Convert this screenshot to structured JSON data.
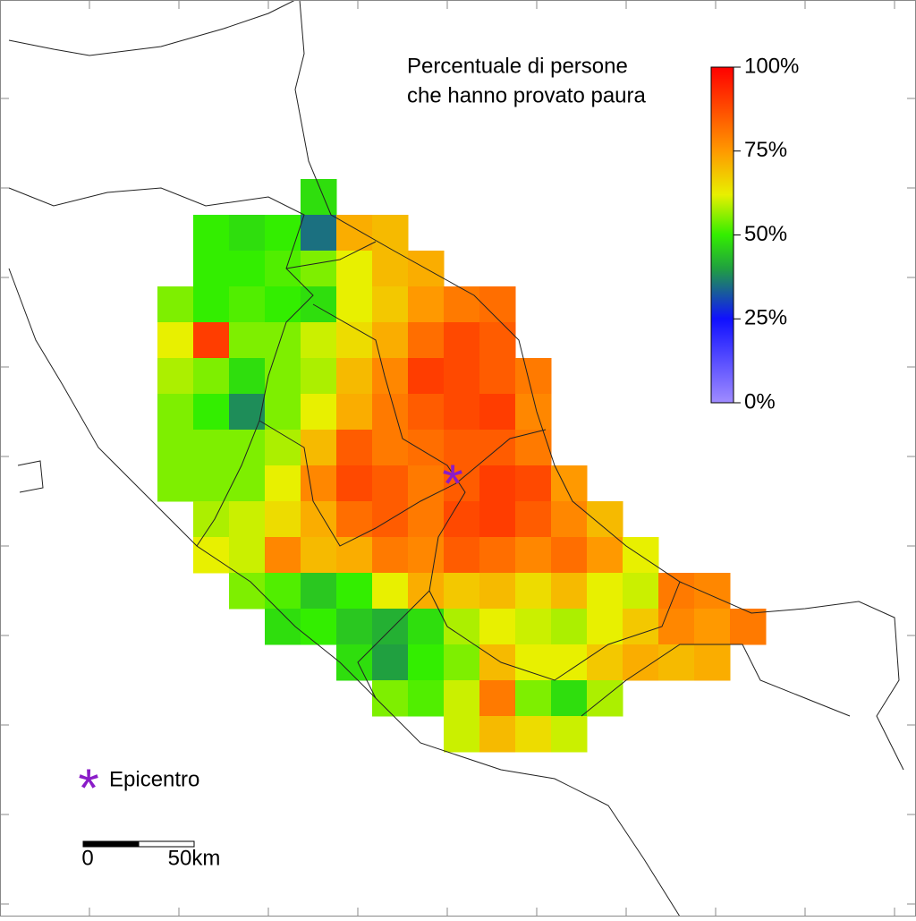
{
  "title": [
    "Percentuale di persone",
    "che hanno provato paura"
  ],
  "colorbar": {
    "lim": [
      0,
      100
    ],
    "ticks": [
      {
        "value": 0,
        "label": "0%"
      },
      {
        "value": 25,
        "label": "25%"
      },
      {
        "value": 50,
        "label": "50%"
      },
      {
        "value": 75,
        "label": "75%"
      },
      {
        "value": 100,
        "label": "100%"
      }
    ],
    "colorscale": [
      {
        "value": 0,
        "color": "#a08cff"
      },
      {
        "value": 25,
        "color": "#1010ff"
      },
      {
        "value": 40,
        "color": "#20a040"
      },
      {
        "value": 50,
        "color": "#33ee00"
      },
      {
        "value": 62,
        "color": "#e8f000"
      },
      {
        "value": 75,
        "color": "#ff9900"
      },
      {
        "value": 100,
        "color": "#ff0000"
      }
    ]
  },
  "field": [
    [
      null,
      null,
      null,
      null,
      48,
      null,
      null,
      null,
      null,
      null,
      null,
      null,
      null,
      null,
      null,
      null,
      null
    ],
    [
      null,
      50,
      48,
      50,
      35,
      72,
      70,
      null,
      null,
      null,
      null,
      null,
      null,
      null,
      null,
      null,
      null
    ],
    [
      null,
      50,
      50,
      52,
      55,
      62,
      70,
      72,
      null,
      null,
      null,
      null,
      null,
      null,
      null,
      null,
      null
    ],
    [
      55,
      50,
      52,
      50,
      48,
      62,
      68,
      75,
      80,
      82,
      null,
      null,
      null,
      null,
      null,
      null,
      null
    ],
    [
      62,
      90,
      55,
      55,
      60,
      65,
      72,
      82,
      88,
      85,
      null,
      null,
      null,
      null,
      null,
      null,
      null
    ],
    [
      58,
      55,
      48,
      55,
      58,
      70,
      78,
      90,
      88,
      85,
      80,
      null,
      null,
      null,
      null,
      null,
      null
    ],
    [
      55,
      50,
      38,
      55,
      62,
      72,
      80,
      85,
      88,
      90,
      78,
      null,
      null,
      null,
      null,
      null,
      null
    ],
    [
      55,
      55,
      55,
      58,
      70,
      85,
      80,
      82,
      85,
      85,
      80,
      null,
      null,
      null,
      null,
      null,
      null
    ],
    [
      55,
      55,
      55,
      62,
      78,
      88,
      85,
      80,
      85,
      90,
      88,
      75,
      null,
      null,
      null,
      null,
      null
    ],
    [
      null,
      58,
      60,
      65,
      72,
      82,
      85,
      80,
      88,
      90,
      85,
      78,
      70,
      null,
      null,
      null,
      null
    ],
    [
      null,
      62,
      60,
      78,
      70,
      72,
      80,
      78,
      85,
      82,
      78,
      82,
      75,
      62,
      null,
      null,
      null
    ],
    [
      null,
      null,
      55,
      52,
      45,
      50,
      62,
      72,
      68,
      70,
      65,
      70,
      62,
      60,
      80,
      78,
      null
    ],
    [
      null,
      null,
      null,
      48,
      50,
      45,
      42,
      48,
      58,
      62,
      60,
      58,
      62,
      68,
      78,
      75,
      80
    ],
    [
      null,
      null,
      null,
      null,
      null,
      48,
      40,
      50,
      55,
      70,
      62,
      62,
      68,
      72,
      70,
      72,
      null
    ],
    [
      null,
      null,
      null,
      null,
      null,
      null,
      55,
      52,
      60,
      80,
      55,
      48,
      58,
      null,
      null,
      null,
      null
    ],
    [
      null,
      null,
      null,
      null,
      null,
      null,
      null,
      null,
      60,
      70,
      65,
      60,
      null,
      null,
      null,
      null,
      null
    ]
  ],
  "legend": {
    "epicenter": "Epicentro"
  },
  "scale_bar": {
    "labels": [
      "0",
      "50km"
    ]
  }
}
